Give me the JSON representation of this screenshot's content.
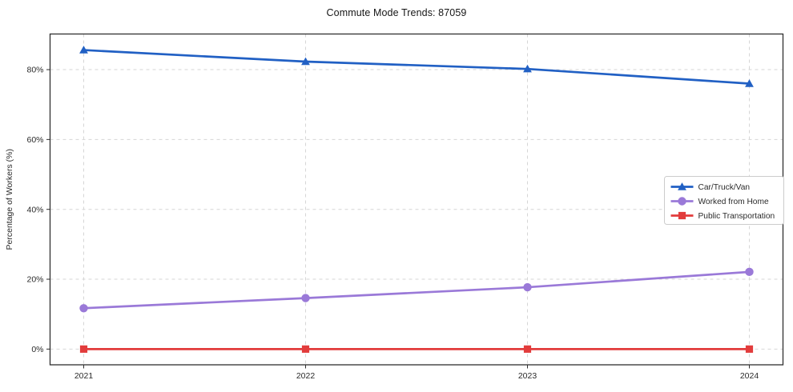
{
  "chart_data": {
    "type": "line",
    "title": "Commute Mode Trends: 87059",
    "ylabel": "Percentage of Workers (%)",
    "xlabel": "",
    "categories": [
      "2021",
      "2022",
      "2023",
      "2024"
    ],
    "yticks": [
      "0%",
      "20%",
      "40%",
      "60%",
      "80%"
    ],
    "ytick_values": [
      0,
      20,
      40,
      60,
      80
    ],
    "ylim": [
      -4.5,
      90.2
    ],
    "grid": true,
    "legend_position": "center right",
    "series": [
      {
        "name": "Car/Truck/Van",
        "marker": "triangle",
        "color": "#2160c4",
        "values": [
          85.6,
          82.3,
          80.2,
          76.0
        ]
      },
      {
        "name": "Worked from Home",
        "marker": "circle",
        "color": "#9a79d8",
        "values": [
          11.7,
          14.6,
          17.7,
          22.1
        ]
      },
      {
        "name": "Public Transportation",
        "marker": "square",
        "color": "#e23c3c",
        "values": [
          0.0,
          0.0,
          0.0,
          0.0
        ]
      }
    ]
  },
  "colors": {
    "background": "#ffffff",
    "grid": "#d6d6d6",
    "spine": "#2f2f2f",
    "tick_text": "#2b2b2b",
    "legend_border": "#cccccc",
    "legend_fill": "#ffffff"
  }
}
